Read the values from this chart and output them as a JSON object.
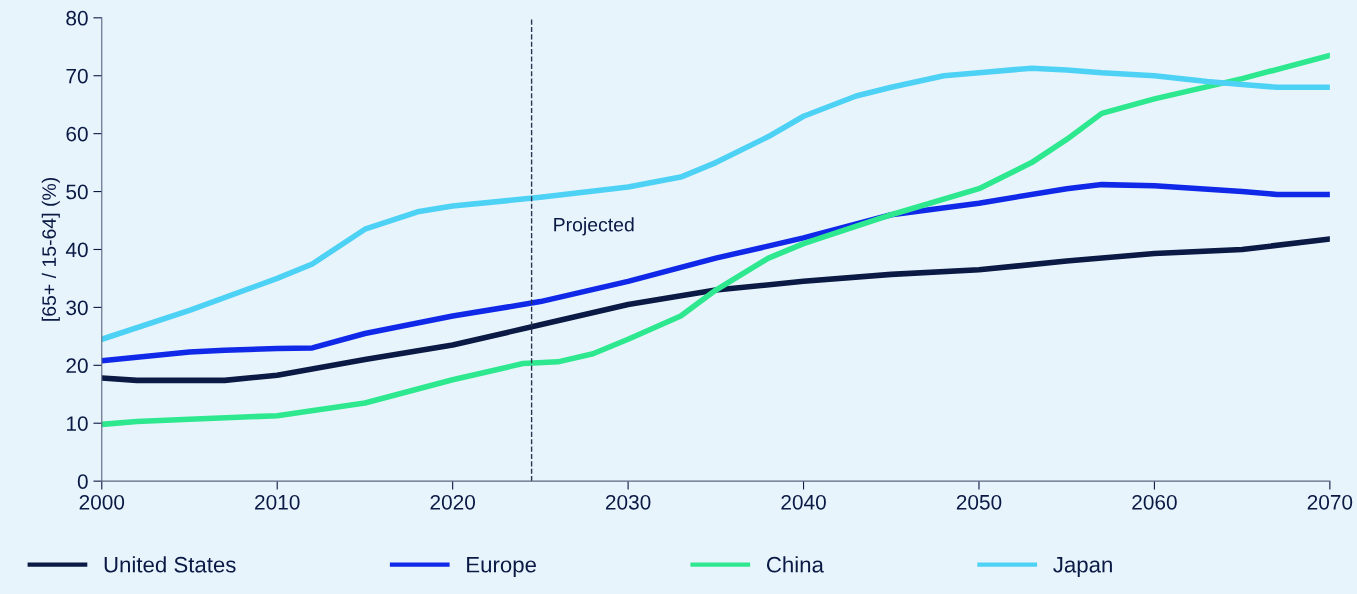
{
  "chart_data": {
    "type": "line",
    "ylabel": "[65+ / 15-64] (%)",
    "xlim": [
      2000,
      2070
    ],
    "xticks": [
      2000,
      2010,
      2020,
      2030,
      2040,
      2050,
      2060,
      2070
    ],
    "ylim": [
      0,
      80
    ],
    "yticks": [
      0,
      10,
      20,
      30,
      40,
      50,
      60,
      70,
      80
    ],
    "grid": false,
    "legend": "bottom",
    "marker": "none",
    "line_style": "solid",
    "ref_lines": [
      {
        "axis": "x",
        "value": 2024.5,
        "label": "Projected",
        "color": "#2a3350",
        "line_style": "dashed"
      }
    ],
    "series": [
      {
        "name": "United States",
        "color": "#0b1a45",
        "x": [
          2000,
          2002,
          2005,
          2007,
          2010,
          2015,
          2020,
          2025,
          2030,
          2035,
          2040,
          2045,
          2050,
          2055,
          2060,
          2065,
          2070
        ],
        "values": [
          17.8,
          17.4,
          17.4,
          17.4,
          18.3,
          21,
          23.5,
          27,
          30.5,
          33,
          34.5,
          35.7,
          36.5,
          38,
          39.3,
          40,
          41.8
        ]
      },
      {
        "name": "Europe",
        "color": "#1028e8",
        "x": [
          2000,
          2005,
          2007,
          2010,
          2012,
          2015,
          2020,
          2025,
          2030,
          2035,
          2040,
          2045,
          2050,
          2055,
          2057,
          2060,
          2065,
          2067,
          2070
        ],
        "values": [
          20.8,
          22.3,
          22.6,
          22.9,
          23,
          25.5,
          28.5,
          31,
          34.5,
          38.5,
          42,
          46,
          48,
          50.5,
          51.2,
          51,
          50,
          49.5,
          49.5
        ]
      },
      {
        "name": "China",
        "color": "#2ee88f",
        "x": [
          2000,
          2002,
          2005,
          2010,
          2015,
          2020,
          2024,
          2026,
          2028,
          2030,
          2033,
          2035,
          2038,
          2040,
          2045,
          2050,
          2053,
          2055,
          2057,
          2060,
          2065,
          2070
        ],
        "values": [
          9.8,
          10.3,
          10.7,
          11.3,
          13.5,
          17.5,
          20.3,
          20.6,
          22,
          24.5,
          28.5,
          33,
          38.5,
          41,
          46,
          50.5,
          55,
          59,
          63.5,
          66,
          69.5,
          73.5
        ]
      },
      {
        "name": "Japan",
        "color": "#4dd2f5",
        "x": [
          2000,
          2005,
          2010,
          2012,
          2015,
          2018,
          2020,
          2025,
          2030,
          2033,
          2035,
          2038,
          2040,
          2043,
          2045,
          2048,
          2050,
          2053,
          2055,
          2057,
          2060,
          2063,
          2065,
          2067,
          2070
        ],
        "values": [
          24.5,
          29.5,
          35,
          37.5,
          43.5,
          46.5,
          47.5,
          49,
          50.8,
          52.5,
          55,
          59.5,
          63,
          66.5,
          68,
          70,
          70.5,
          71.3,
          71,
          70.5,
          70,
          69,
          68.5,
          68,
          68
        ]
      }
    ]
  }
}
